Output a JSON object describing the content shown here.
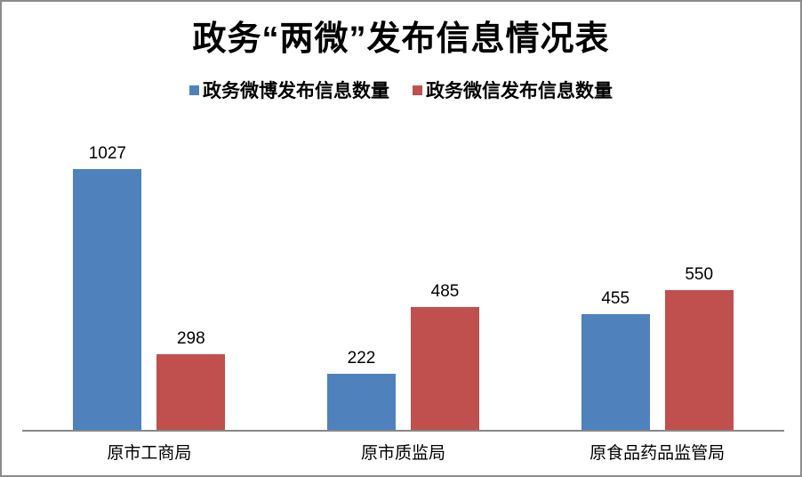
{
  "frame": {
    "border_color": "#8c8c8c",
    "background": "#ffffff",
    "axis_line_color": "#878787"
  },
  "chart_data": {
    "type": "bar",
    "title": "政务“两微”发布信息情况表",
    "categories": [
      "原市工商局",
      "原市质监局",
      "原食品药品监管局"
    ],
    "series": [
      {
        "name": "政务微博发布信息数量",
        "color": "#4F81BD",
        "values": [
          1027,
          222,
          455
        ]
      },
      {
        "name": "政务微信发布信息数量",
        "color": "#C0504D",
        "values": [
          298,
          485,
          550
        ]
      }
    ],
    "data_labels": [
      "1027",
      "298",
      "222",
      "485",
      "455",
      "550"
    ],
    "ylim": [
      0,
      1100
    ],
    "legend_position": "top",
    "grid": false,
    "y_axis_visible": false,
    "xlabel": "",
    "ylabel": ""
  }
}
